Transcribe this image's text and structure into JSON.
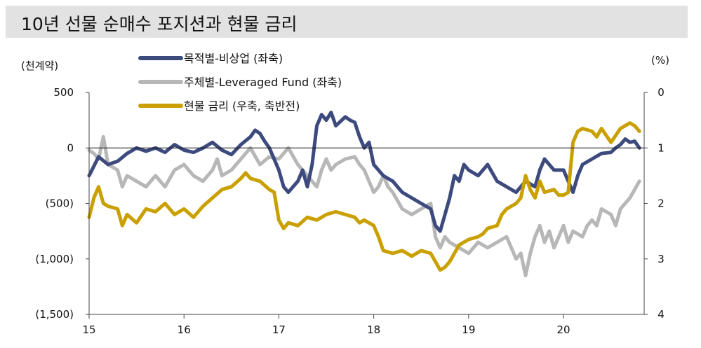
{
  "title": "10년 선물 순매수 포지션과 현물 금리",
  "chart_data": {
    "type": "line",
    "title": "10년 선물 순매수 포지션과 현물 금리",
    "left_unit": "(천계약)",
    "right_unit": "(%)",
    "left_ylim": [
      -1500,
      500
    ],
    "right_ylim": [
      0,
      4
    ],
    "right_inverted": true,
    "left_ticks": [
      {
        "value": 500,
        "label": "500"
      },
      {
        "value": 0,
        "label": "0"
      },
      {
        "value": -500,
        "label": "(500)"
      },
      {
        "value": -1000,
        "label": "(1,000)"
      },
      {
        "value": -1500,
        "label": "(1,500)"
      }
    ],
    "right_ticks": [
      {
        "value": 0,
        "label": "0"
      },
      {
        "value": 1,
        "label": "1"
      },
      {
        "value": 2,
        "label": "2"
      },
      {
        "value": 3,
        "label": "3"
      },
      {
        "value": 4,
        "label": "4"
      }
    ],
    "x_range": [
      2015.0,
      2020.85
    ],
    "x_ticks": [
      {
        "value": 2015,
        "label": "15"
      },
      {
        "value": 2016,
        "label": "16"
      },
      {
        "value": 2017,
        "label": "17"
      },
      {
        "value": 2018,
        "label": "18"
      },
      {
        "value": 2019,
        "label": "19"
      },
      {
        "value": 2020,
        "label": "20"
      }
    ],
    "legend": "top-center",
    "series": [
      {
        "name": "목적별-비상업 (좌축)",
        "axis": "left",
        "color": "#3d4a7d",
        "points": [
          [
            2015.0,
            -250
          ],
          [
            2015.1,
            -80
          ],
          [
            2015.2,
            -150
          ],
          [
            2015.3,
            -120
          ],
          [
            2015.4,
            -50
          ],
          [
            2015.5,
            0
          ],
          [
            2015.6,
            -30
          ],
          [
            2015.7,
            0
          ],
          [
            2015.8,
            -40
          ],
          [
            2015.9,
            30
          ],
          [
            2016.0,
            -20
          ],
          [
            2016.1,
            -40
          ],
          [
            2016.2,
            0
          ],
          [
            2016.3,
            50
          ],
          [
            2016.4,
            -20
          ],
          [
            2016.5,
            -60
          ],
          [
            2016.6,
            30
          ],
          [
            2016.7,
            100
          ],
          [
            2016.75,
            160
          ],
          [
            2016.8,
            130
          ],
          [
            2016.85,
            60
          ],
          [
            2016.9,
            0
          ],
          [
            2017.0,
            -200
          ],
          [
            2017.05,
            -350
          ],
          [
            2017.1,
            -400
          ],
          [
            2017.2,
            -300
          ],
          [
            2017.25,
            -200
          ],
          [
            2017.3,
            -350
          ],
          [
            2017.35,
            -150
          ],
          [
            2017.4,
            200
          ],
          [
            2017.45,
            300
          ],
          [
            2017.5,
            250
          ],
          [
            2017.55,
            320
          ],
          [
            2017.6,
            200
          ],
          [
            2017.7,
            280
          ],
          [
            2017.75,
            250
          ],
          [
            2017.8,
            230
          ],
          [
            2017.85,
            100
          ],
          [
            2017.9,
            0
          ],
          [
            2017.95,
            50
          ],
          [
            2018.0,
            -150
          ],
          [
            2018.1,
            -250
          ],
          [
            2018.2,
            -300
          ],
          [
            2018.3,
            -400
          ],
          [
            2018.4,
            -450
          ],
          [
            2018.5,
            -500
          ],
          [
            2018.6,
            -550
          ],
          [
            2018.65,
            -700
          ],
          [
            2018.7,
            -750
          ],
          [
            2018.75,
            -600
          ],
          [
            2018.8,
            -450
          ],
          [
            2018.85,
            -250
          ],
          [
            2018.9,
            -300
          ],
          [
            2018.95,
            -150
          ],
          [
            2019.0,
            -200
          ],
          [
            2019.1,
            -250
          ],
          [
            2019.2,
            -150
          ],
          [
            2019.3,
            -300
          ],
          [
            2019.4,
            -350
          ],
          [
            2019.5,
            -400
          ],
          [
            2019.6,
            -300
          ],
          [
            2019.7,
            -350
          ],
          [
            2019.75,
            -200
          ],
          [
            2019.8,
            -100
          ],
          [
            2019.9,
            -200
          ],
          [
            2020.0,
            -200
          ],
          [
            2020.05,
            -300
          ],
          [
            2020.1,
            -400
          ],
          [
            2020.15,
            -250
          ],
          [
            2020.2,
            -150
          ],
          [
            2020.3,
            -100
          ],
          [
            2020.4,
            -50
          ],
          [
            2020.5,
            -40
          ],
          [
            2020.55,
            0
          ],
          [
            2020.6,
            30
          ],
          [
            2020.65,
            80
          ],
          [
            2020.7,
            50
          ],
          [
            2020.75,
            60
          ],
          [
            2020.8,
            0
          ]
        ]
      },
      {
        "name": "주체별-Leveraged Fund (좌축)",
        "axis": "left",
        "color": "#b7b7b7",
        "points": [
          [
            2015.0,
            -20
          ],
          [
            2015.05,
            -50
          ],
          [
            2015.1,
            -100
          ],
          [
            2015.15,
            100
          ],
          [
            2015.2,
            -150
          ],
          [
            2015.3,
            -200
          ],
          [
            2015.35,
            -350
          ],
          [
            2015.4,
            -250
          ],
          [
            2015.5,
            -300
          ],
          [
            2015.6,
            -350
          ],
          [
            2015.7,
            -250
          ],
          [
            2015.8,
            -350
          ],
          [
            2015.9,
            -200
          ],
          [
            2016.0,
            -150
          ],
          [
            2016.1,
            -250
          ],
          [
            2016.2,
            -300
          ],
          [
            2016.3,
            -200
          ],
          [
            2016.35,
            -100
          ],
          [
            2016.4,
            -250
          ],
          [
            2016.5,
            -200
          ],
          [
            2016.6,
            -100
          ],
          [
            2016.7,
            0
          ],
          [
            2016.8,
            -150
          ],
          [
            2016.9,
            -80
          ],
          [
            2017.0,
            -100
          ],
          [
            2017.1,
            0
          ],
          [
            2017.2,
            -150
          ],
          [
            2017.3,
            -250
          ],
          [
            2017.4,
            -350
          ],
          [
            2017.45,
            -200
          ],
          [
            2017.5,
            -100
          ],
          [
            2017.55,
            -200
          ],
          [
            2017.6,
            -150
          ],
          [
            2017.7,
            -100
          ],
          [
            2017.8,
            -80
          ],
          [
            2017.85,
            -150
          ],
          [
            2017.9,
            -200
          ],
          [
            2017.95,
            -300
          ],
          [
            2018.0,
            -400
          ],
          [
            2018.05,
            -350
          ],
          [
            2018.1,
            -250
          ],
          [
            2018.15,
            -350
          ],
          [
            2018.2,
            -400
          ],
          [
            2018.3,
            -550
          ],
          [
            2018.4,
            -600
          ],
          [
            2018.5,
            -550
          ],
          [
            2018.6,
            -500
          ],
          [
            2018.65,
            -800
          ],
          [
            2018.7,
            -900
          ],
          [
            2018.75,
            -800
          ],
          [
            2018.8,
            -850
          ],
          [
            2018.9,
            -900
          ],
          [
            2019.0,
            -950
          ],
          [
            2019.1,
            -850
          ],
          [
            2019.2,
            -900
          ],
          [
            2019.3,
            -850
          ],
          [
            2019.4,
            -800
          ],
          [
            2019.45,
            -900
          ],
          [
            2019.5,
            -1000
          ],
          [
            2019.55,
            -950
          ],
          [
            2019.6,
            -1150
          ],
          [
            2019.65,
            -950
          ],
          [
            2019.7,
            -800
          ],
          [
            2019.75,
            -700
          ],
          [
            2019.8,
            -850
          ],
          [
            2019.85,
            -750
          ],
          [
            2019.9,
            -900
          ],
          [
            2019.95,
            -800
          ],
          [
            2020.0,
            -700
          ],
          [
            2020.05,
            -850
          ],
          [
            2020.1,
            -750
          ],
          [
            2020.2,
            -800
          ],
          [
            2020.25,
            -700
          ],
          [
            2020.3,
            -650
          ],
          [
            2020.35,
            -700
          ],
          [
            2020.4,
            -550
          ],
          [
            2020.5,
            -600
          ],
          [
            2020.55,
            -700
          ],
          [
            2020.6,
            -550
          ],
          [
            2020.7,
            -450
          ],
          [
            2020.8,
            -300
          ]
        ]
      },
      {
        "name": "현물 금리 (우축, 축반전)",
        "axis": "right",
        "color": "#c9a000",
        "points": [
          [
            2015.0,
            2.25
          ],
          [
            2015.05,
            1.9
          ],
          [
            2015.1,
            1.7
          ],
          [
            2015.15,
            2.0
          ],
          [
            2015.2,
            2.05
          ],
          [
            2015.3,
            2.1
          ],
          [
            2015.35,
            2.4
          ],
          [
            2015.4,
            2.2
          ],
          [
            2015.5,
            2.35
          ],
          [
            2015.6,
            2.1
          ],
          [
            2015.7,
            2.15
          ],
          [
            2015.8,
            2.0
          ],
          [
            2015.9,
            2.2
          ],
          [
            2016.0,
            2.1
          ],
          [
            2016.1,
            2.25
          ],
          [
            2016.2,
            2.05
          ],
          [
            2016.3,
            1.9
          ],
          [
            2016.4,
            1.75
          ],
          [
            2016.5,
            1.7
          ],
          [
            2016.6,
            1.55
          ],
          [
            2016.65,
            1.45
          ],
          [
            2016.7,
            1.55
          ],
          [
            2016.8,
            1.6
          ],
          [
            2016.9,
            1.75
          ],
          [
            2016.95,
            1.8
          ],
          [
            2017.0,
            2.3
          ],
          [
            2017.05,
            2.45
          ],
          [
            2017.1,
            2.35
          ],
          [
            2017.2,
            2.4
          ],
          [
            2017.3,
            2.25
          ],
          [
            2017.4,
            2.3
          ],
          [
            2017.5,
            2.2
          ],
          [
            2017.6,
            2.15
          ],
          [
            2017.7,
            2.2
          ],
          [
            2017.8,
            2.25
          ],
          [
            2017.85,
            2.35
          ],
          [
            2017.9,
            2.3
          ],
          [
            2018.0,
            2.4
          ],
          [
            2018.05,
            2.6
          ],
          [
            2018.1,
            2.85
          ],
          [
            2018.2,
            2.9
          ],
          [
            2018.3,
            2.85
          ],
          [
            2018.4,
            2.95
          ],
          [
            2018.5,
            2.85
          ],
          [
            2018.6,
            2.9
          ],
          [
            2018.7,
            3.2
          ],
          [
            2018.75,
            3.15
          ],
          [
            2018.8,
            3.05
          ],
          [
            2018.85,
            2.9
          ],
          [
            2018.9,
            2.75
          ],
          [
            2018.95,
            2.7
          ],
          [
            2019.0,
            2.65
          ],
          [
            2019.1,
            2.6
          ],
          [
            2019.15,
            2.55
          ],
          [
            2019.2,
            2.45
          ],
          [
            2019.3,
            2.4
          ],
          [
            2019.35,
            2.2
          ],
          [
            2019.4,
            2.1
          ],
          [
            2019.45,
            2.05
          ],
          [
            2019.5,
            2.0
          ],
          [
            2019.55,
            1.9
          ],
          [
            2019.6,
            1.5
          ],
          [
            2019.65,
            1.75
          ],
          [
            2019.7,
            1.9
          ],
          [
            2019.75,
            1.6
          ],
          [
            2019.8,
            1.8
          ],
          [
            2019.9,
            1.75
          ],
          [
            2019.95,
            1.85
          ],
          [
            2020.0,
            1.85
          ],
          [
            2020.05,
            1.8
          ],
          [
            2020.1,
            0.9
          ],
          [
            2020.15,
            0.7
          ],
          [
            2020.2,
            0.65
          ],
          [
            2020.3,
            0.7
          ],
          [
            2020.35,
            0.8
          ],
          [
            2020.4,
            0.65
          ],
          [
            2020.5,
            0.9
          ],
          [
            2020.6,
            0.65
          ],
          [
            2020.7,
            0.55
          ],
          [
            2020.75,
            0.6
          ],
          [
            2020.8,
            0.7
          ]
        ]
      }
    ]
  }
}
